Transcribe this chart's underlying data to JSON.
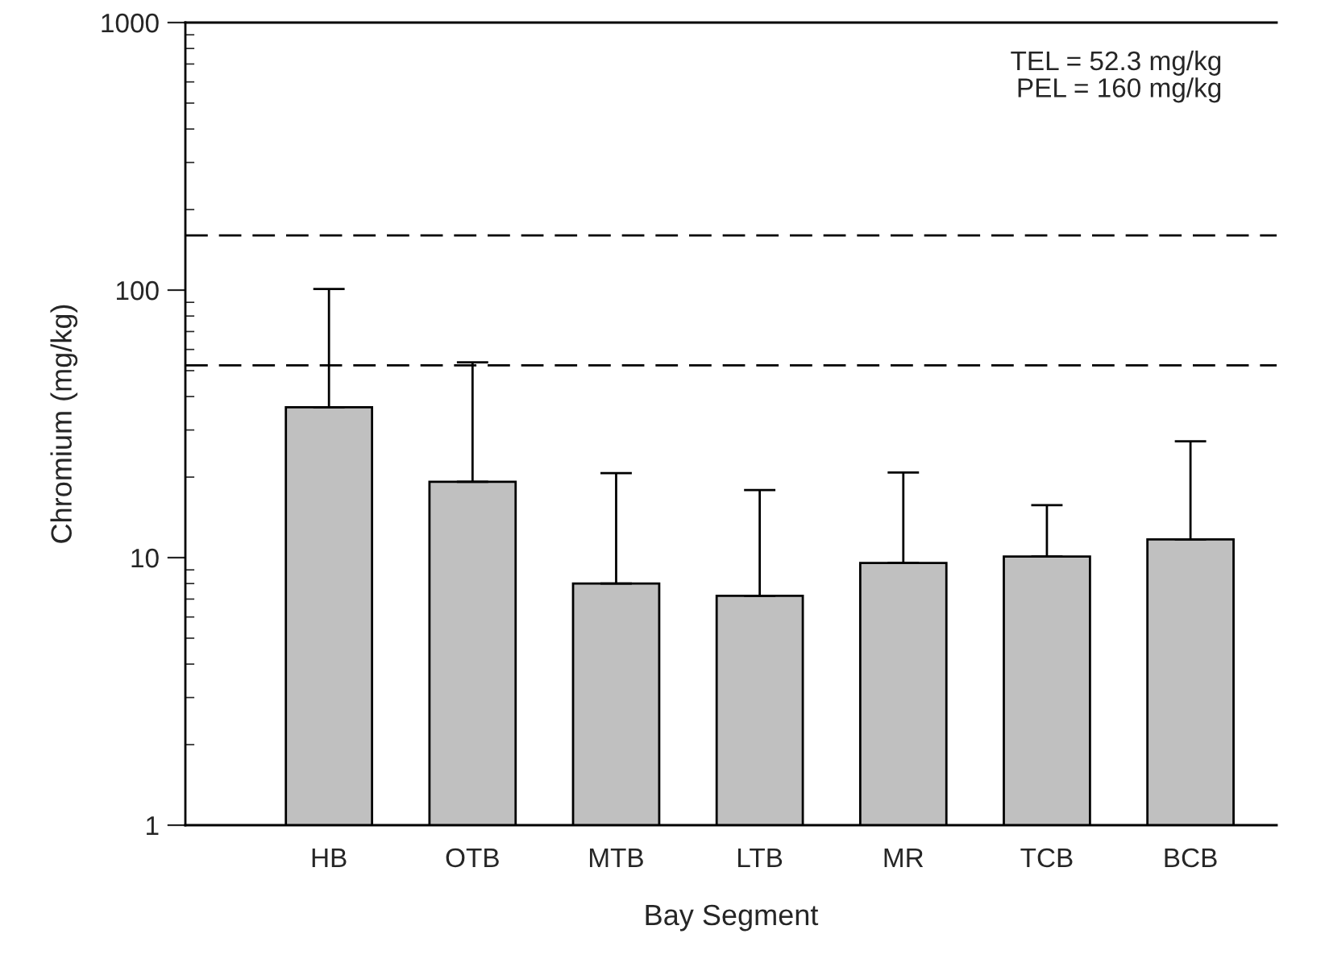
{
  "chart_data": {
    "type": "bar",
    "xlabel": "Bay Segment",
    "ylabel": "Chromium (mg/kg)",
    "categories": [
      "HB",
      "OTB",
      "MTB",
      "LTB",
      "MR",
      "TCB",
      "BCB"
    ],
    "values": [
      36.5,
      19.2,
      8.0,
      7.2,
      9.55,
      10.1,
      11.7
    ],
    "color": "#c0c0c0",
    "errors": [
      [
        36.5,
        101
      ],
      [
        19.2,
        53.7
      ],
      [
        8.0,
        20.7
      ],
      [
        7.2,
        17.9
      ],
      [
        9.55,
        20.8
      ],
      [
        10.1,
        15.7
      ],
      [
        11.7,
        27.2
      ]
    ],
    "log": "y",
    "ylim": [
      1,
      1000
    ],
    "yticks": [
      1,
      10,
      100,
      1000
    ],
    "grid": false,
    "ref_lines": [
      {
        "axis": "y",
        "value": 52.3,
        "line_style": "dashed"
      },
      {
        "axis": "y",
        "value": 160,
        "line_style": "dashed"
      }
    ],
    "annotations": [
      "TEL = 52.3 mg/kg",
      "PEL = 160 mg/kg"
    ]
  }
}
